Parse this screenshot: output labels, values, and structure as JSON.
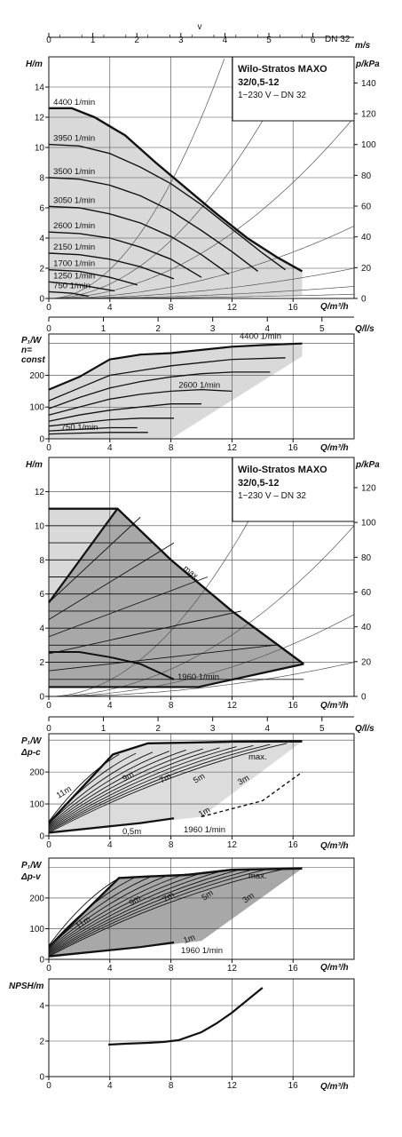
{
  "title_box": {
    "line1": "Wilo-Stratos MAXO",
    "line2": "32/0,5-12",
    "line3": "1~230 V – DN 32"
  },
  "chart_data": [
    {
      "id": "velocity_axis",
      "type": "line",
      "label": "v",
      "unit": "m/s",
      "dn": "DN 32",
      "ticks": [
        "0",
        "1",
        "2",
        "3",
        "4",
        "5",
        "6"
      ]
    },
    {
      "id": "h_q_const",
      "type": "line",
      "ylabel": "H/m",
      "y2label": "p/kPa",
      "xlabel": "Q/m³/h",
      "xlim": [
        0,
        20
      ],
      "ylim": [
        0,
        16
      ],
      "x_ticks": [
        "0",
        "4",
        "8",
        "12",
        "16"
      ],
      "y_ticks": [
        "0",
        "2",
        "4",
        "6",
        "8",
        "10",
        "12",
        "14"
      ],
      "y2_ticks": [
        "0",
        "20",
        "40",
        "60",
        "80",
        "100",
        "120",
        "140"
      ],
      "series": [
        {
          "name": "4400 1/min",
          "x": [
            0,
            1.5,
            3,
            5,
            7,
            9,
            11,
            13,
            15,
            16.6
          ],
          "values": [
            12.6,
            12.6,
            12.0,
            10.8,
            9.0,
            7.3,
            5.6,
            4.0,
            2.7,
            1.8
          ]
        },
        {
          "name": "3950 1/min",
          "x": [
            0,
            2,
            4,
            6,
            8,
            10,
            12,
            14,
            15.5
          ],
          "values": [
            10.2,
            10.1,
            9.6,
            8.7,
            7.6,
            6.2,
            4.6,
            3.0,
            1.9
          ]
        },
        {
          "name": "3500 1/min",
          "x": [
            0,
            2,
            4,
            6,
            8,
            10,
            12,
            13.7
          ],
          "values": [
            8.0,
            7.9,
            7.5,
            6.8,
            5.8,
            4.5,
            3.1,
            1.8
          ]
        },
        {
          "name": "3050 1/min",
          "x": [
            0,
            2,
            4,
            6,
            8,
            10,
            11.8
          ],
          "values": [
            6.1,
            6.0,
            5.6,
            5.0,
            4.1,
            2.9,
            1.6
          ]
        },
        {
          "name": "2600 1/min",
          "x": [
            0,
            2,
            4,
            6,
            8,
            10
          ],
          "values": [
            4.4,
            4.3,
            4.0,
            3.4,
            2.6,
            1.4
          ]
        },
        {
          "name": "2150 1/min",
          "x": [
            0,
            2,
            4,
            6,
            8.2
          ],
          "values": [
            3.0,
            2.9,
            2.6,
            2.1,
            1.3
          ]
        },
        {
          "name": "1700 1/min",
          "x": [
            0,
            2,
            4,
            5.8
          ],
          "values": [
            1.9,
            1.8,
            1.4,
            0.9
          ]
        },
        {
          "name": "1250 1/min",
          "x": [
            0,
            2,
            4.3
          ],
          "values": [
            1.1,
            0.9,
            0.5
          ]
        },
        {
          "name": "750 1/min",
          "x": [
            0,
            1.5,
            2.6
          ],
          "values": [
            0.45,
            0.35,
            0.15
          ]
        }
      ],
      "system_curves_kpa": [
        120,
        60,
        30,
        12,
        5,
        2,
        0.7
      ]
    },
    {
      "id": "p1_const",
      "type": "line",
      "ylabel_line1": "P₁/W",
      "ylabel_line2": "n=",
      "ylabel_line3": "const",
      "xlabel": "Q/m³/h",
      "x2label": "Q/l/s",
      "x2_ticks": [
        "0",
        "1",
        "2",
        "3",
        "4",
        "5"
      ],
      "x_ticks": [
        "0",
        "4",
        "8",
        "12",
        "16"
      ],
      "y_ticks": [
        "0",
        "100",
        "200"
      ],
      "xlim": [
        0,
        20
      ],
      "ylim": [
        0,
        330
      ],
      "series": [
        {
          "name": "4400 1/min",
          "x": [
            0,
            2,
            4,
            6,
            8,
            10,
            12,
            14,
            16.6
          ],
          "values": [
            155,
            195,
            250,
            265,
            270,
            280,
            290,
            295,
            300
          ]
        },
        {
          "name": "",
          "x": [
            0,
            2,
            4,
            6,
            8,
            10,
            12,
            15.5
          ],
          "values": [
            120,
            160,
            200,
            215,
            230,
            240,
            250,
            255
          ]
        },
        {
          "name": "",
          "x": [
            0,
            2,
            4,
            6,
            8,
            10,
            12,
            14.5
          ],
          "values": [
            95,
            130,
            160,
            180,
            195,
            205,
            210,
            210
          ]
        },
        {
          "name": "2600 1/min",
          "x": [
            0,
            2,
            4,
            6,
            8,
            10,
            12
          ],
          "values": [
            75,
            100,
            125,
            140,
            150,
            155,
            150
          ]
        },
        {
          "name": "",
          "x": [
            0,
            2,
            4,
            6,
            8,
            10
          ],
          "values": [
            55,
            75,
            90,
            100,
            110,
            110
          ]
        },
        {
          "name": "",
          "x": [
            0,
            2,
            4,
            6,
            8.2
          ],
          "values": [
            40,
            50,
            60,
            65,
            65
          ]
        },
        {
          "name": "",
          "x": [
            0,
            2,
            4,
            5.8
          ],
          "values": [
            25,
            30,
            35,
            35
          ]
        },
        {
          "name": "750 1/min",
          "x": [
            0,
            2,
            4,
            6.5
          ],
          "values": [
            15,
            18,
            20,
            20
          ]
        }
      ]
    },
    {
      "id": "h_q_regulated",
      "type": "line",
      "ylabel": "H/m",
      "y2label": "p/kPa",
      "xlabel": "Q/m³/h",
      "xlim": [
        0,
        20
      ],
      "ylim": [
        0,
        14
      ],
      "x_ticks": [
        "0",
        "4",
        "8",
        "12",
        "16"
      ],
      "y_ticks": [
        "0",
        "2",
        "4",
        "6",
        "8",
        "10",
        "12"
      ],
      "y2_ticks": [
        "0",
        "20",
        "40",
        "60",
        "80",
        "100",
        "120"
      ],
      "max_label": "max.",
      "min_label": "1960 1/min",
      "envelope_max": {
        "x": [
          0,
          4.5,
          8,
          12,
          16.7
        ],
        "values": [
          11.0,
          11.0,
          8.0,
          5.0,
          1.9
        ]
      },
      "envelope_lower": {
        "x": [
          0,
          9.8,
          16.7
        ],
        "values": [
          0.55,
          0.55,
          1.9
        ]
      },
      "const_dp_lines": [
        11,
        10,
        9,
        8,
        7,
        6,
        5,
        4,
        3,
        2,
        1
      ],
      "var_dp_lines": [
        5.5,
        4.5,
        3.5,
        2.5,
        1.5
      ],
      "min_curve": {
        "x": [
          0,
          2,
          4,
          6,
          8.2
        ],
        "values": [
          2.6,
          2.6,
          2.3,
          1.9,
          1.0
        ]
      }
    },
    {
      "id": "p1_dpc",
      "type": "line",
      "ylabel_line1": "P₁/W",
      "ylabel_line2": "Δp-c",
      "xlabel": "Q/m³/h",
      "x2label": "Q/l/s",
      "x2_ticks": [
        "0",
        "1",
        "2",
        "3",
        "4",
        "5"
      ],
      "x_ticks": [
        "0",
        "4",
        "8",
        "12",
        "16"
      ],
      "y_ticks": [
        "0",
        "100",
        "200"
      ],
      "xlim": [
        0,
        20
      ],
      "ylim": [
        0,
        320
      ],
      "head_labels": [
        "11m",
        "9m",
        "7m",
        "5m",
        "3m",
        "1m",
        "0,5m"
      ],
      "max_label": "max.",
      "min_label": "1960 1/min",
      "envelope_max": {
        "x": [
          4.2,
          6.5,
          9,
          12,
          16.6
        ],
        "values": [
          255,
          290,
          292,
          295,
          296
        ]
      },
      "min_curve": {
        "x": [
          0,
          3,
          6,
          8.2
        ],
        "values": [
          10,
          25,
          40,
          55
        ]
      }
    },
    {
      "id": "p1_dpv",
      "type": "line",
      "ylabel_line1": "P₁/W",
      "ylabel_line2": "Δp-v",
      "xlabel": "Q/m³/h",
      "x_ticks": [
        "0",
        "4",
        "8",
        "12",
        "16"
      ],
      "y_ticks": [
        "0",
        "100",
        "200"
      ],
      "xlim": [
        0,
        20
      ],
      "ylim": [
        0,
        330
      ],
      "head_labels": [
        "11m",
        "9m",
        "7m",
        "5m",
        "3m",
        "1m"
      ],
      "max_label": "max.",
      "min_label": "1960 1/min",
      "envelope_max": {
        "x": [
          4.6,
          6.5,
          9,
          12,
          16.6
        ],
        "values": [
          265,
          270,
          275,
          292,
          296
        ]
      },
      "min_curve": {
        "x": [
          0,
          3,
          6,
          8.2
        ],
        "values": [
          10,
          25,
          40,
          55
        ]
      }
    },
    {
      "id": "npsh",
      "type": "line",
      "ylabel": "NPSH/m",
      "xlabel": "Q/m³/h",
      "x_ticks": [
        "0",
        "4",
        "8",
        "12",
        "16"
      ],
      "y_ticks": [
        "0",
        "2",
        "4"
      ],
      "xlim": [
        0,
        20
      ],
      "ylim": [
        0,
        5.5
      ],
      "series": [
        {
          "name": "",
          "x": [
            3.9,
            5,
            6.5,
            7.5,
            8.5,
            10,
            11,
            12,
            13,
            14
          ],
          "values": [
            1.8,
            1.85,
            1.9,
            1.95,
            2.05,
            2.5,
            3.0,
            3.6,
            4.3,
            5.0
          ]
        }
      ]
    }
  ]
}
